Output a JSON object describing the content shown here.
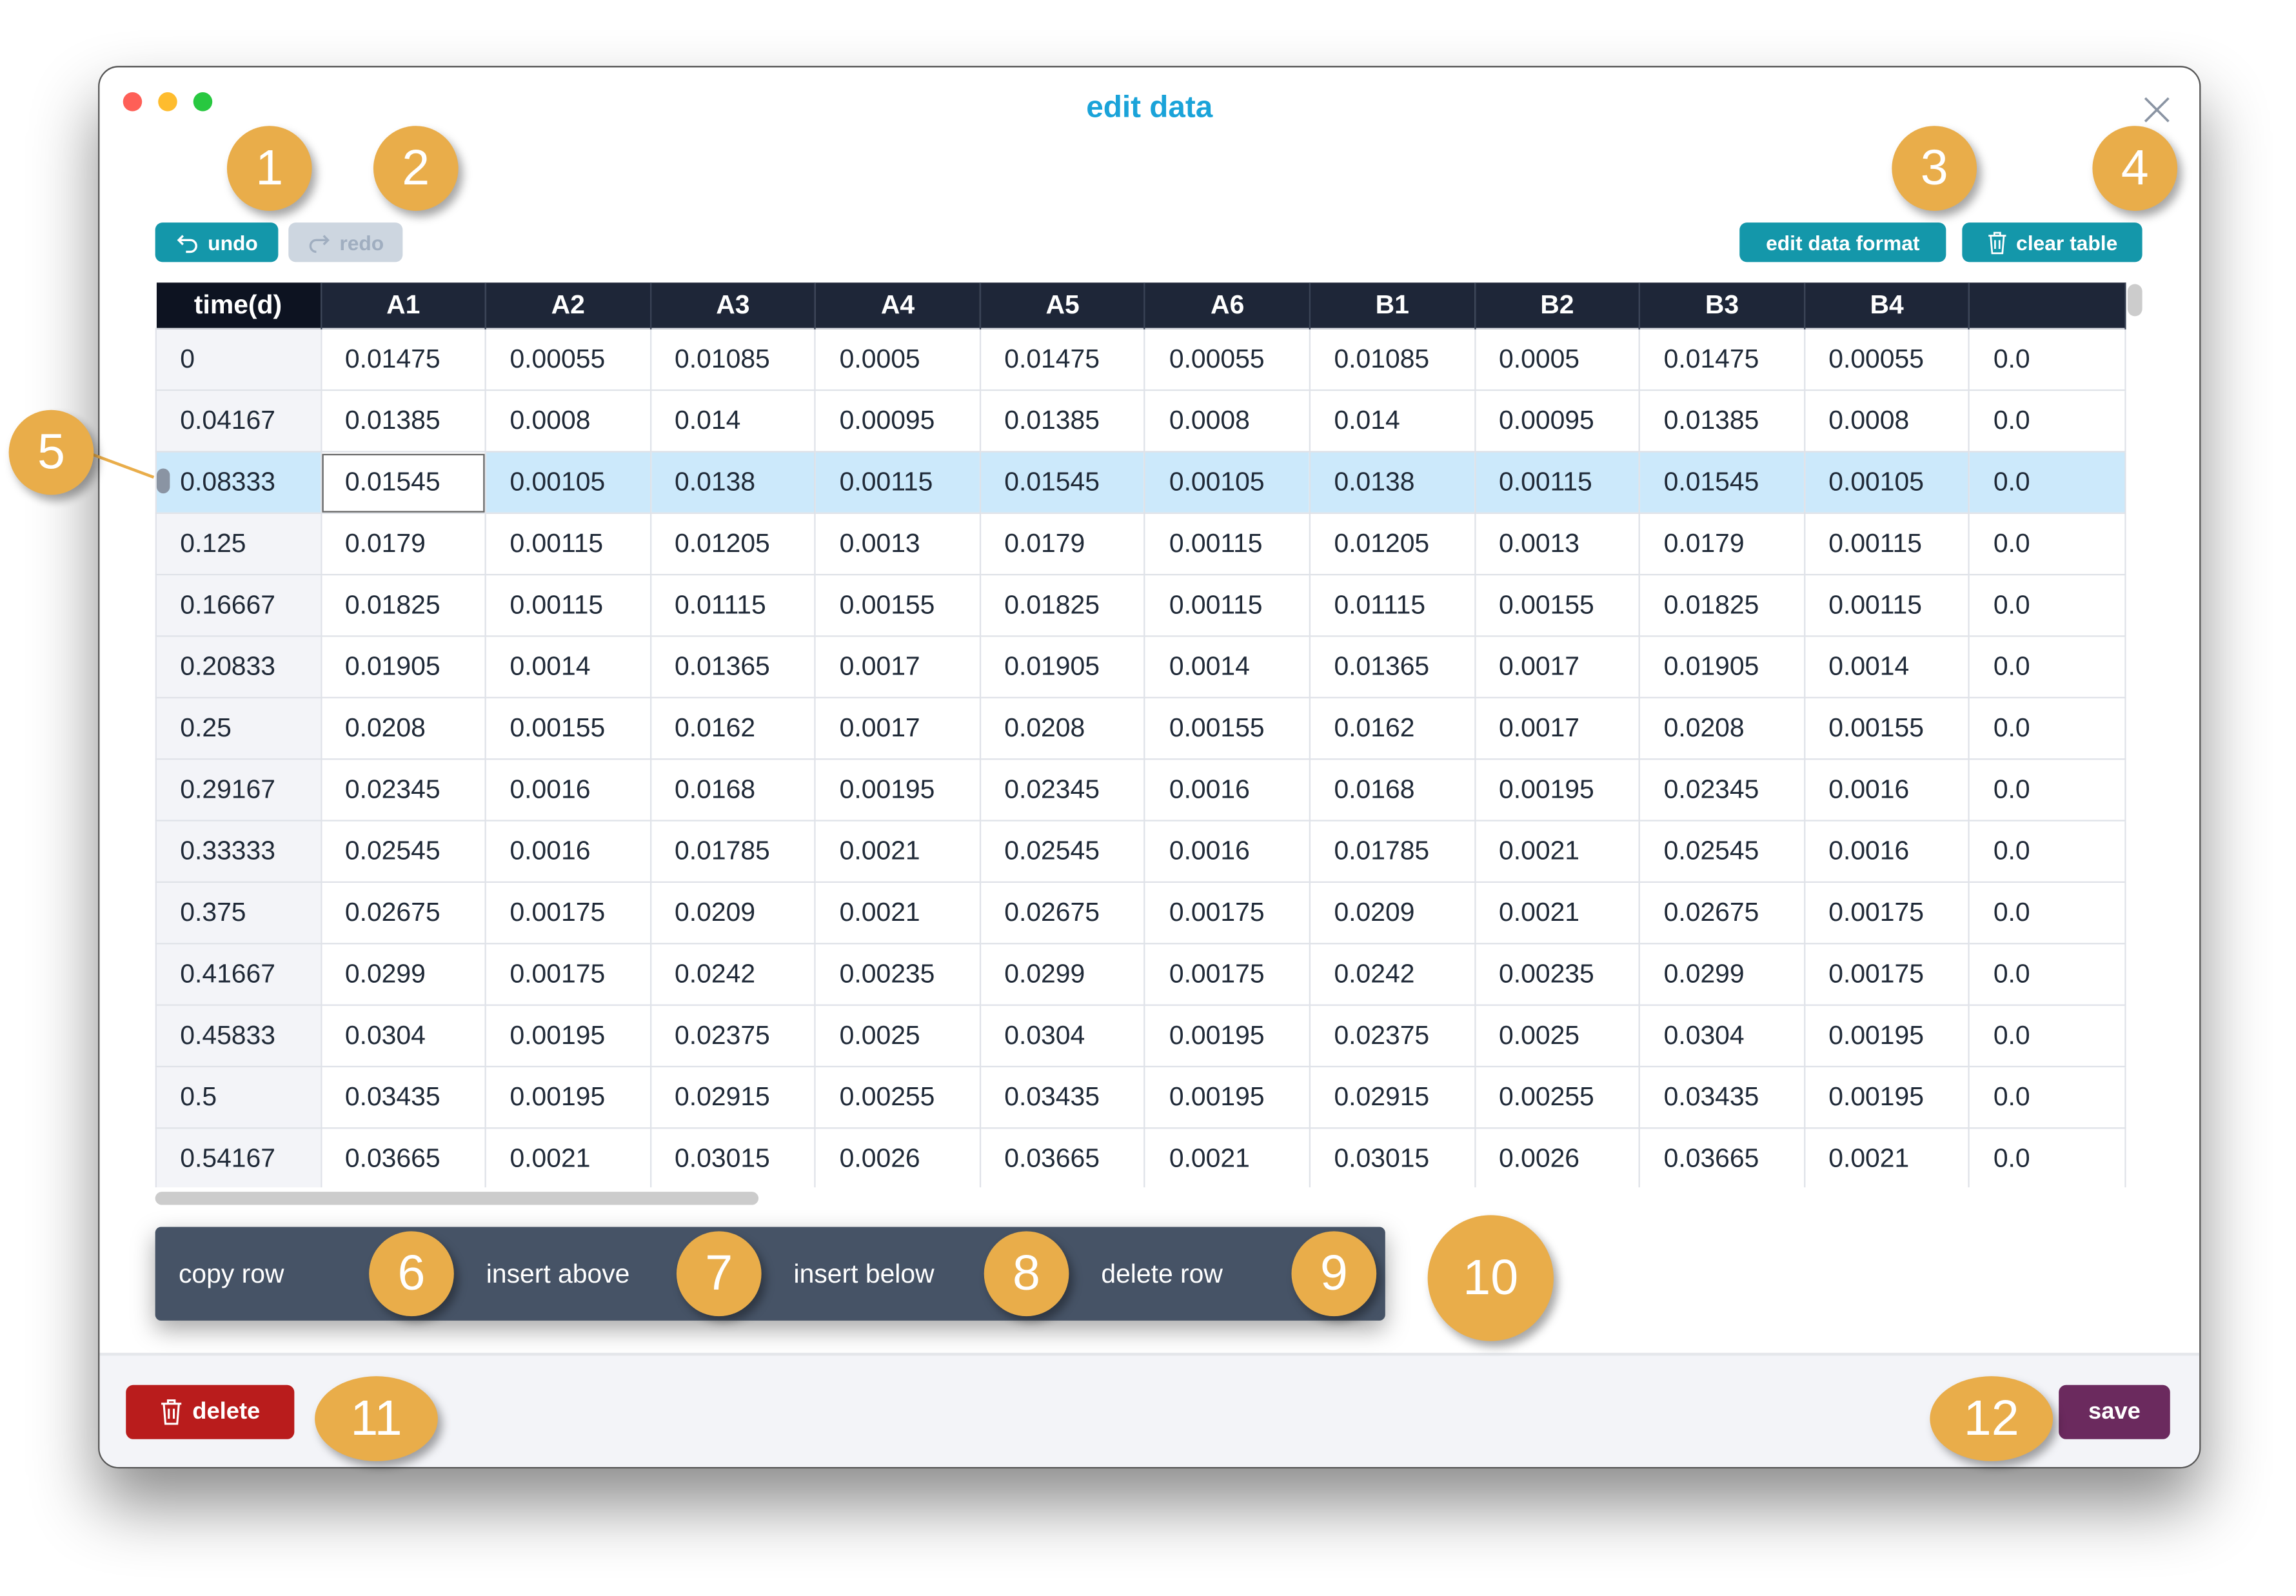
{
  "window": {
    "title": "edit data"
  },
  "toolbar": {
    "undo_label": "undo",
    "redo_label": "redo",
    "edit_format_label": "edit data format",
    "clear_table_label": "clear table"
  },
  "table": {
    "columns": [
      "time(d)",
      "A1",
      "A2",
      "A3",
      "A4",
      "A5",
      "A6",
      "B1",
      "B2",
      "B3",
      "B4",
      ""
    ],
    "selected_row": 2,
    "rows": [
      [
        "0",
        "0.01475",
        "0.00055",
        "0.01085",
        "0.0005",
        "0.01475",
        "0.00055",
        "0.01085",
        "0.0005",
        "0.01475",
        "0.00055",
        "0.0"
      ],
      [
        "0.04167",
        "0.01385",
        "0.0008",
        "0.014",
        "0.00095",
        "0.01385",
        "0.0008",
        "0.014",
        "0.00095",
        "0.01385",
        "0.0008",
        "0.0"
      ],
      [
        "0.08333",
        "0.01545",
        "0.00105",
        "0.0138",
        "0.00115",
        "0.01545",
        "0.00105",
        "0.0138",
        "0.00115",
        "0.01545",
        "0.00105",
        "0.0"
      ],
      [
        "0.125",
        "0.0179",
        "0.00115",
        "0.01205",
        "0.0013",
        "0.0179",
        "0.00115",
        "0.01205",
        "0.0013",
        "0.0179",
        "0.00115",
        "0.0"
      ],
      [
        "0.16667",
        "0.01825",
        "0.00115",
        "0.01115",
        "0.00155",
        "0.01825",
        "0.00115",
        "0.01115",
        "0.00155",
        "0.01825",
        "0.00115",
        "0.0"
      ],
      [
        "0.20833",
        "0.01905",
        "0.0014",
        "0.01365",
        "0.0017",
        "0.01905",
        "0.0014",
        "0.01365",
        "0.0017",
        "0.01905",
        "0.0014",
        "0.0"
      ],
      [
        "0.25",
        "0.0208",
        "0.00155",
        "0.0162",
        "0.0017",
        "0.0208",
        "0.00155",
        "0.0162",
        "0.0017",
        "0.0208",
        "0.00155",
        "0.0"
      ],
      [
        "0.29167",
        "0.02345",
        "0.0016",
        "0.0168",
        "0.00195",
        "0.02345",
        "0.0016",
        "0.0168",
        "0.00195",
        "0.02345",
        "0.0016",
        "0.0"
      ],
      [
        "0.33333",
        "0.02545",
        "0.0016",
        "0.01785",
        "0.0021",
        "0.02545",
        "0.0016",
        "0.01785",
        "0.0021",
        "0.02545",
        "0.0016",
        "0.0"
      ],
      [
        "0.375",
        "0.02675",
        "0.00175",
        "0.0209",
        "0.0021",
        "0.02675",
        "0.00175",
        "0.0209",
        "0.0021",
        "0.02675",
        "0.00175",
        "0.0"
      ],
      [
        "0.41667",
        "0.0299",
        "0.00175",
        "0.0242",
        "0.00235",
        "0.0299",
        "0.00175",
        "0.0242",
        "0.00235",
        "0.0299",
        "0.00175",
        "0.0"
      ],
      [
        "0.45833",
        "0.0304",
        "0.00195",
        "0.02375",
        "0.0025",
        "0.0304",
        "0.00195",
        "0.02375",
        "0.0025",
        "0.0304",
        "0.00195",
        "0.0"
      ],
      [
        "0.5",
        "0.03435",
        "0.00195",
        "0.02915",
        "0.00255",
        "0.03435",
        "0.00195",
        "0.02915",
        "0.00255",
        "0.03435",
        "0.00195",
        "0.0"
      ],
      [
        "0.54167",
        "0.03665",
        "0.0021",
        "0.03015",
        "0.0026",
        "0.03665",
        "0.0021",
        "0.03015",
        "0.0026",
        "0.03665",
        "0.0021",
        "0.0"
      ]
    ]
  },
  "context_menu": {
    "items": [
      "copy row",
      "insert above",
      "insert below",
      "delete row"
    ]
  },
  "footer": {
    "delete_label": "delete",
    "save_label": "save"
  },
  "badges": [
    "1",
    "2",
    "3",
    "4",
    "5",
    "6",
    "7",
    "8",
    "9",
    "10",
    "11",
    "12"
  ],
  "colors": {
    "accent": "#1497aa",
    "title": "#1aa3d9",
    "header": "#1e2638",
    "selected_row": "#cce9fb",
    "delete": "#b91c1c",
    "save": "#6b2a5e",
    "badge": "#e9ad4a",
    "menu": "#465366"
  }
}
